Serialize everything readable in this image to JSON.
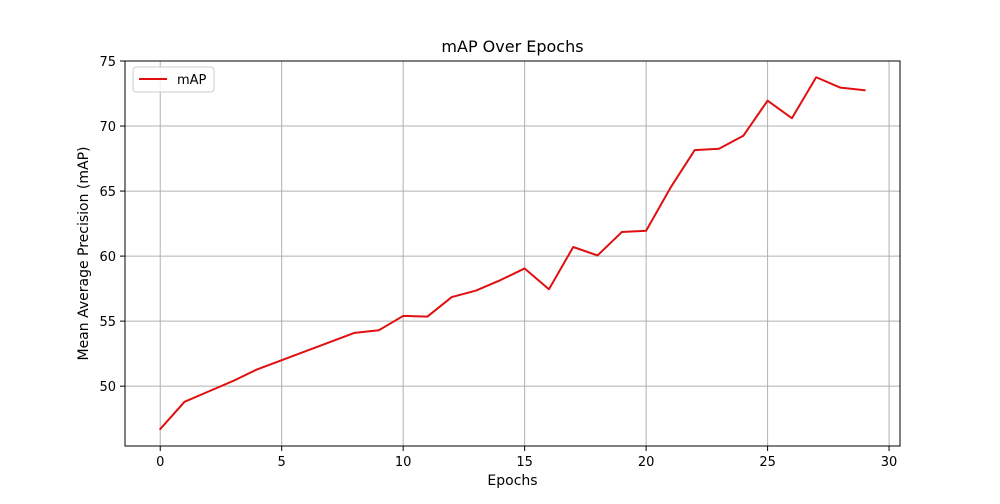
{
  "chart_data": {
    "type": "line",
    "title": "mAP Over Epochs",
    "xlabel": "Epochs",
    "ylabel": "Mean Average Precision (mAP)",
    "xlim": [
      -1.45,
      30.45
    ],
    "ylim": [
      45.4,
      75.0
    ],
    "x_ticks": [
      0,
      5,
      10,
      15,
      20,
      25,
      30
    ],
    "y_ticks": [
      50,
      55,
      60,
      65,
      70,
      75
    ],
    "grid": true,
    "legend": {
      "position": "top-left"
    },
    "series": [
      {
        "name": "mAP",
        "color": "#e01010",
        "x": [
          0,
          1,
          2,
          3,
          4,
          5,
          6,
          7,
          8,
          9,
          10,
          11,
          12,
          13,
          14,
          15,
          16,
          17,
          18,
          19,
          20,
          21,
          22,
          23,
          24,
          25,
          26,
          27,
          28,
          29
        ],
        "values": [
          46.7,
          48.8,
          49.6,
          50.4,
          51.3,
          52.0,
          52.7,
          53.4,
          54.1,
          54.3,
          55.4,
          55.35,
          56.85,
          57.35,
          58.15,
          59.05,
          57.45,
          60.7,
          60.05,
          61.85,
          61.95,
          65.25,
          68.15,
          68.25,
          69.25,
          71.95,
          70.6,
          73.75,
          72.95,
          72.75
        ]
      }
    ]
  }
}
